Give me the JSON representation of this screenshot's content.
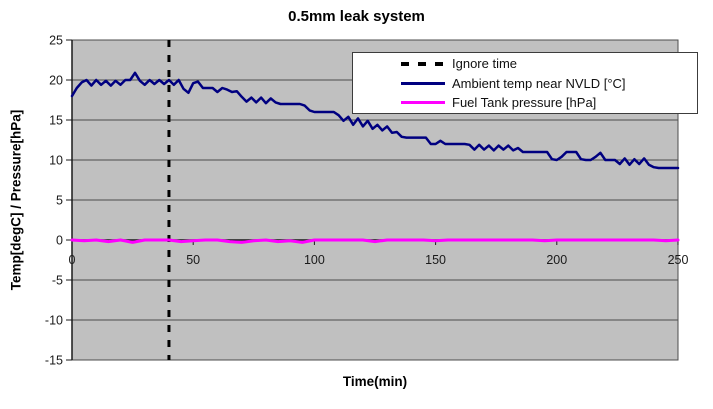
{
  "chart_data": {
    "type": "line",
    "title": "0.5mm leak system",
    "xlabel": "Time(min)",
    "ylabel": "Temp[degC] / Pressure[hPa]",
    "xlim": [
      0,
      250
    ],
    "ylim": [
      -15,
      25
    ],
    "x_ticks": [
      0,
      50,
      100,
      150,
      200,
      250
    ],
    "y_ticks": [
      25,
      20,
      15,
      10,
      5,
      0,
      -5,
      -10,
      -15
    ],
    "grid": "horizontal",
    "legend_position": "top-right",
    "plot_bg": "#c0c0c0",
    "grid_color": "#4d4d4d",
    "axis_color": "#1a1a1a",
    "text_color": "#1a1a1a",
    "series": [
      {
        "name": "Ignore time",
        "slug": "ignore-time-line",
        "type": "vline",
        "x": 40,
        "color": "#000000",
        "style": "dashed"
      },
      {
        "name": "Ambient temp near NVLD [°C]",
        "slug": "ambient-temp-line",
        "type": "line",
        "color": "#000080",
        "style": "solid",
        "width": 2.5,
        "x": [
          0,
          2,
          4,
          6,
          8,
          10,
          12,
          14,
          16,
          18,
          20,
          22,
          24,
          26,
          28,
          30,
          32,
          34,
          36,
          38,
          40,
          42,
          44,
          46,
          48,
          50,
          52,
          54,
          56,
          58,
          60,
          62,
          64,
          66,
          68,
          70,
          72,
          74,
          76,
          78,
          80,
          82,
          84,
          86,
          88,
          90,
          92,
          94,
          96,
          98,
          100,
          102,
          104,
          106,
          108,
          110,
          112,
          114,
          116,
          118,
          120,
          122,
          124,
          126,
          128,
          130,
          132,
          134,
          136,
          138,
          140,
          142,
          144,
          146,
          148,
          150,
          152,
          154,
          156,
          158,
          160,
          162,
          164,
          166,
          168,
          170,
          172,
          174,
          176,
          178,
          180,
          182,
          184,
          186,
          188,
          190,
          192,
          194,
          196,
          198,
          200,
          202,
          204,
          206,
          208,
          210,
          212,
          214,
          216,
          218,
          220,
          222,
          224,
          226,
          228,
          230,
          232,
          234,
          236,
          238,
          240,
          242,
          244,
          246,
          248,
          250
        ],
        "y": [
          18,
          19,
          19.7,
          20,
          19.3,
          20,
          19.4,
          19.9,
          19.3,
          19.9,
          19.4,
          20,
          20,
          20.9,
          19.9,
          19.4,
          20,
          19.5,
          20,
          19.5,
          20,
          19.4,
          20,
          18.9,
          18.4,
          19.6,
          19.8,
          19,
          19,
          19,
          18.5,
          19,
          18.8,
          18.5,
          18.6,
          17.9,
          17.3,
          17.8,
          17.2,
          17.8,
          17.1,
          17.7,
          17.2,
          17,
          17,
          17,
          17,
          17,
          16.8,
          16.2,
          16,
          16,
          16,
          16,
          16,
          15.6,
          14.9,
          15.4,
          14.4,
          15.2,
          14.2,
          14.9,
          13.9,
          14.4,
          13.7,
          14.2,
          13.4,
          13.5,
          12.9,
          12.8,
          12.8,
          12.8,
          12.8,
          12.8,
          12,
          12,
          12.4,
          12,
          12,
          12,
          12,
          12,
          11.9,
          11.3,
          11.9,
          11.3,
          11.8,
          11.2,
          11.8,
          11.3,
          11.8,
          11.2,
          11.5,
          11,
          11,
          11,
          11,
          11,
          11,
          10.1,
          10,
          10.4,
          11,
          11,
          11,
          10.1,
          10,
          10,
          10.4,
          10.9,
          10,
          10,
          10,
          9.5,
          10.2,
          9.4,
          10.1,
          9.5,
          10.2,
          9.4,
          9.1,
          9,
          9,
          9,
          9,
          9
        ]
      },
      {
        "name": "Fuel Tank pressure [hPa]",
        "slug": "fuel-tank-pressure-line",
        "type": "line",
        "color": "#ff00ff",
        "style": "solid",
        "width": 3,
        "x": [
          0,
          5,
          10,
          15,
          20,
          25,
          30,
          35,
          40,
          45,
          50,
          55,
          60,
          65,
          70,
          75,
          80,
          85,
          90,
          95,
          100,
          105,
          110,
          115,
          120,
          125,
          130,
          135,
          140,
          145,
          150,
          155,
          160,
          165,
          170,
          175,
          180,
          185,
          190,
          195,
          200,
          205,
          210,
          215,
          220,
          225,
          230,
          235,
          240,
          245,
          250
        ],
        "y": [
          0,
          -0.1,
          0,
          -0.2,
          0,
          -0.3,
          0,
          0,
          0,
          -0.2,
          -0.1,
          0,
          0,
          -0.2,
          -0.3,
          -0.1,
          0,
          -0.2,
          -0.1,
          -0.3,
          0,
          0,
          0,
          0,
          0,
          -0.2,
          0,
          0,
          0,
          0,
          -0.1,
          0,
          0,
          0,
          0,
          0,
          0,
          0,
          0,
          -0.1,
          0,
          0,
          0,
          0,
          0,
          0,
          0,
          0,
          0,
          -0.1,
          0
        ]
      }
    ]
  }
}
